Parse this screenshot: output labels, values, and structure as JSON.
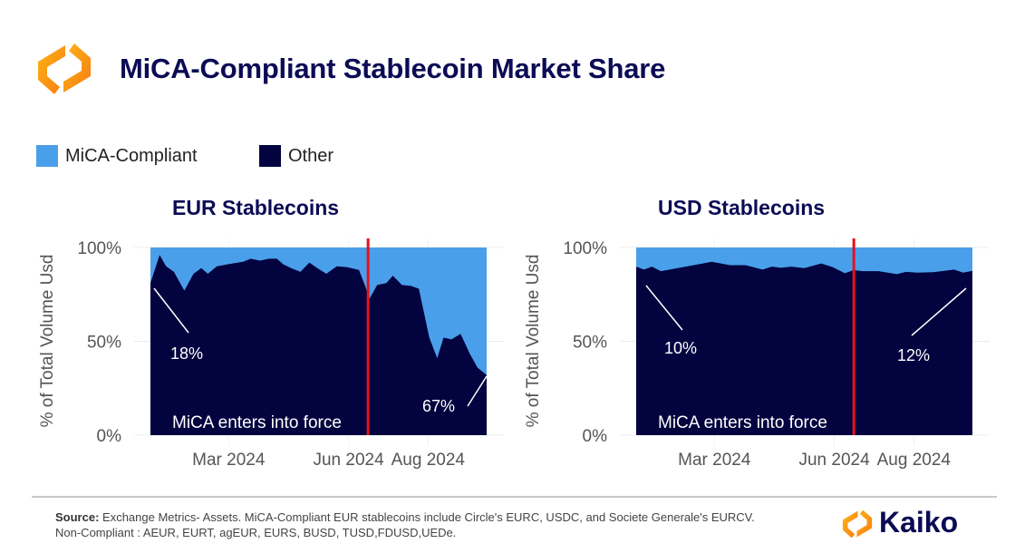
{
  "header": {
    "title": "MiCA-Compliant Stablecoin Market Share"
  },
  "legend": {
    "items": [
      {
        "label": "MiCA-Compliant",
        "color": "#4a9fea"
      },
      {
        "label": "Other",
        "color": "#03033f"
      }
    ]
  },
  "chart_data": [
    {
      "type": "area",
      "stacked": true,
      "title": "EUR Stablecoins",
      "ylabel": "% of Total Volume Usd",
      "ylim": [
        0,
        100
      ],
      "yticks": [
        "0%",
        "50%",
        "100%"
      ],
      "yticks_values": [
        0,
        50,
        100
      ],
      "xlim": [
        "2024-01-01",
        "2024-09-15"
      ],
      "xticks": [
        {
          "date": "2024-03-01",
          "label": "Mar 2024"
        },
        {
          "date": "2024-06-01",
          "label": "Jun 2024"
        },
        {
          "date": "2024-08-01",
          "label": "Aug 2024"
        }
      ],
      "grid": true,
      "x": [
        "2024-01-01",
        "2024-01-08",
        "2024-01-13",
        "2024-01-19",
        "2024-01-27",
        "2024-02-03",
        "2024-02-09",
        "2024-02-14",
        "2024-02-21",
        "2024-03-04",
        "2024-03-12",
        "2024-03-18",
        "2024-03-25",
        "2024-04-01",
        "2024-04-07",
        "2024-04-12",
        "2024-04-18",
        "2024-04-25",
        "2024-05-02",
        "2024-05-08",
        "2024-05-15",
        "2024-05-23",
        "2024-05-31",
        "2024-06-09",
        "2024-06-14",
        "2024-06-17",
        "2024-06-23",
        "2024-06-30",
        "2024-07-05",
        "2024-07-12",
        "2024-07-19",
        "2024-07-25",
        "2024-08-02",
        "2024-08-08",
        "2024-08-13",
        "2024-08-19",
        "2024-08-26",
        "2024-09-02",
        "2024-09-08",
        "2024-09-15"
      ],
      "series": [
        {
          "name": "Other",
          "color": "#03033f",
          "values": [
            81,
            96,
            90,
            87,
            77,
            86,
            89,
            86,
            90,
            91.5,
            92.4,
            94,
            93,
            94,
            94,
            91,
            89,
            87,
            92,
            89,
            86,
            90,
            89.5,
            88,
            79,
            72.6,
            80,
            81,
            85,
            80,
            79.5,
            78,
            52,
            41,
            52,
            51,
            54,
            43.5,
            36,
            32
          ]
        },
        {
          "name": "MiCA-Compliant",
          "color": "#4a9fea",
          "values": [
            19,
            4,
            10,
            13,
            23,
            14,
            11,
            14,
            10,
            8.5,
            7.6,
            6,
            7,
            6,
            6,
            9,
            11,
            13,
            8,
            11,
            14,
            10,
            10.5,
            12,
            21,
            27.4,
            20,
            19,
            15,
            20,
            20.5,
            22,
            48,
            59,
            48,
            49,
            46,
            56.5,
            64,
            68
          ]
        }
      ],
      "event_line": {
        "date": "2024-06-16",
        "label": "MiCA enters into force",
        "color": "#e8101a"
      },
      "annotations": [
        {
          "label": "18%"
        },
        {
          "label": "67%"
        }
      ]
    },
    {
      "type": "area",
      "stacked": true,
      "title": "USD Stablecoins",
      "ylabel": "% of Total Volume Usd",
      "ylim": [
        0,
        100
      ],
      "yticks": [
        "0%",
        "50%",
        "100%"
      ],
      "yticks_values": [
        0,
        50,
        100
      ],
      "xlim": [
        "2024-01-01",
        "2024-09-15"
      ],
      "xticks": [
        {
          "date": "2024-03-01",
          "label": "Mar 2024"
        },
        {
          "date": "2024-06-01",
          "label": "Jun 2024"
        },
        {
          "date": "2024-08-01",
          "label": "Aug 2024"
        }
      ],
      "grid": true,
      "x": [
        "2024-01-01",
        "2024-01-07",
        "2024-01-13",
        "2024-01-20",
        "2024-02-08",
        "2024-02-28",
        "2024-03-13",
        "2024-03-25",
        "2024-04-07",
        "2024-04-14",
        "2024-04-21",
        "2024-04-29",
        "2024-05-09",
        "2024-05-22",
        "2024-05-31",
        "2024-06-09",
        "2024-06-16",
        "2024-06-23",
        "2024-07-05",
        "2024-07-19",
        "2024-07-26",
        "2024-08-04",
        "2024-08-16",
        "2024-09-01",
        "2024-09-08",
        "2024-09-15"
      ],
      "series": [
        {
          "name": "Other",
          "color": "#03033f",
          "values": [
            89.8,
            88.2,
            89.8,
            87.4,
            89.8,
            92.4,
            90.6,
            90.6,
            88.2,
            89.8,
            89.2,
            89.8,
            89,
            91.5,
            89.5,
            86.3,
            87.9,
            87.4,
            87.4,
            85.8,
            87,
            86.6,
            86.8,
            88.2,
            86.6,
            87.6
          ]
        },
        {
          "name": "MiCA-Compliant",
          "color": "#4a9fea",
          "values": [
            10.2,
            11.8,
            10.2,
            12.6,
            10.2,
            7.6,
            9.4,
            9.4,
            11.8,
            10.2,
            10.8,
            10.2,
            11,
            8.5,
            10.5,
            13.7,
            12.1,
            12.6,
            12.6,
            14.2,
            13,
            13.4,
            13.2,
            11.8,
            13.4,
            12.4
          ]
        }
      ],
      "event_line": {
        "date": "2024-06-16",
        "label": "MiCA enters into force",
        "color": "#e8101a"
      },
      "annotations": [
        {
          "label": "10%"
        },
        {
          "label": "12%"
        }
      ]
    }
  ],
  "footer": {
    "source_label": "Source:",
    "source_text": " Exchange Metrics- Assets. MiCA-Compliant EUR stablecoins include Circle's EURC, USDC, and Societe Generale's EURCV.",
    "note": "Non-Compliant : AEUR, EURT, agEUR, EURS, BUSD, TUSD,FDUSD,UEDe.",
    "brand": "Kaiko"
  }
}
